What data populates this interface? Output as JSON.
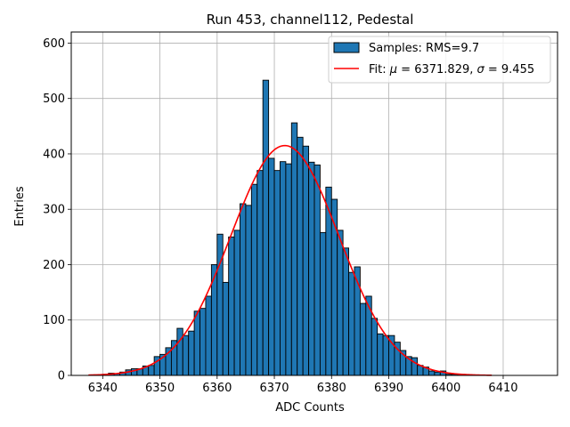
{
  "chart_data": {
    "type": "bar",
    "title": "Run 453, channel112, Pedestal",
    "xlabel": "ADC Counts",
    "ylabel": "Entries",
    "xlim": [
      6334.5,
      6419.5
    ],
    "ylim": [
      0,
      620
    ],
    "xticks": [
      6340,
      6350,
      6360,
      6370,
      6380,
      6390,
      6400,
      6410
    ],
    "yticks": [
      0,
      100,
      200,
      300,
      400,
      500,
      600
    ],
    "grid": true,
    "legend_position": "top-right",
    "histogram": {
      "name": "Samples: RMS=9.7",
      "color": "#1f77b4",
      "edge_color": "#000000",
      "bin_starts": [
        6338,
        6339,
        6340,
        6341,
        6342,
        6343,
        6344,
        6345,
        6346,
        6347,
        6348,
        6349,
        6350,
        6351,
        6352,
        6353,
        6354,
        6355,
        6356,
        6357,
        6358,
        6359,
        6360,
        6361,
        6362,
        6363,
        6364,
        6365,
        6366,
        6367,
        6368,
        6369,
        6370,
        6371,
        6372,
        6373,
        6374,
        6375,
        6376,
        6377,
        6378,
        6379,
        6380,
        6381,
        6382,
        6383,
        6384,
        6385,
        6386,
        6387,
        6388,
        6389,
        6390,
        6391,
        6392,
        6393,
        6394,
        6395,
        6396,
        6397,
        6398,
        6399,
        6400,
        6401,
        6402,
        6403,
        6404,
        6405,
        6406,
        6407,
        6408
      ],
      "bin_width": 1,
      "counts": [
        1,
        1,
        2,
        4,
        3,
        6,
        10,
        12,
        12,
        17,
        18,
        34,
        38,
        50,
        63,
        85,
        72,
        80,
        116,
        121,
        143,
        200,
        255,
        168,
        250,
        262,
        310,
        307,
        345,
        370,
        533,
        392,
        370,
        386,
        382,
        456,
        430,
        414,
        385,
        380,
        258,
        340,
        318,
        262,
        230,
        186,
        196,
        130,
        143,
        103,
        75,
        72,
        72,
        60,
        45,
        34,
        32,
        18,
        15,
        8,
        6,
        8,
        2,
        2,
        1,
        1,
        0,
        0,
        0,
        0,
        0
      ]
    },
    "fit": {
      "name_prefix": "Fit: ",
      "mu_symbol": "μ",
      "sigma_symbol": "σ",
      "mu_text": " = 6371.829, ",
      "sigma_text": " = 9.455",
      "mu": 6371.829,
      "sigma": 9.455,
      "amplitude": 415,
      "x_range": [
        6337.5,
        6408
      ],
      "color": "#ff0000"
    }
  }
}
